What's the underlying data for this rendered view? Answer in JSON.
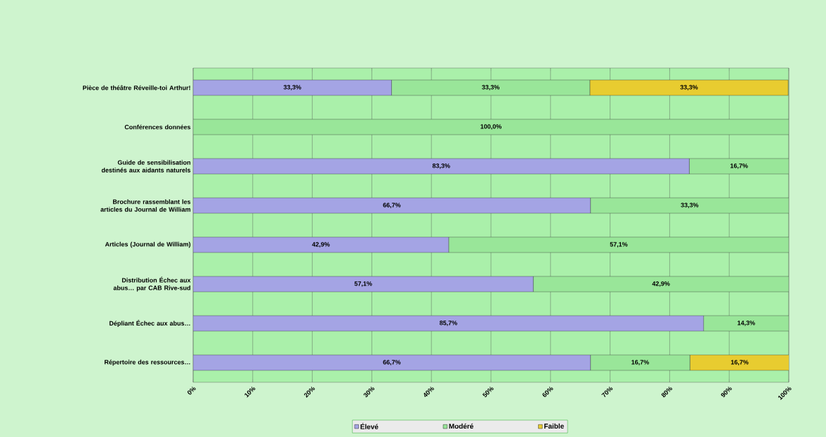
{
  "chart_data": {
    "type": "bar",
    "orientation": "horizontal",
    "stacked": true,
    "categories": [
      "Pièce de théâtre Réveille-toi Arthur!",
      "Conférences données",
      "Guide de sensibilisation destinés aux aidants naturels",
      "Brochure rassemblant les articles du Journal de William",
      "Articles (Journal de William)",
      "Distribution Échec aux abus… par CAB Rive-sud",
      "Dépliant Échec aux abus…",
      "Répertoire des ressources…"
    ],
    "series": [
      {
        "name": "Élevé",
        "color": "#a4a4e4",
        "values": [
          33.3,
          null,
          83.3,
          66.7,
          42.9,
          57.1,
          85.7,
          66.7
        ],
        "value_labels": [
          "33,3%",
          null,
          "83,3%",
          "66,7%",
          "42,9%",
          "57,1%",
          "85,7%",
          "66,7%"
        ]
      },
      {
        "name": "Modéré",
        "color": "#99e699",
        "values": [
          33.3,
          100,
          16.7,
          33.3,
          57.1,
          42.9,
          14.3,
          16.7
        ],
        "value_labels": [
          "33,3%",
          "100,0%",
          "16,7%",
          "33,3%",
          "57,1%",
          "42,9%",
          "14,3%",
          "16,7%"
        ]
      },
      {
        "name": "Faible",
        "color": "#e8cc30",
        "values": [
          33.3,
          null,
          null,
          null,
          null,
          null,
          null,
          16.7
        ],
        "value_labels": [
          "33,3%",
          null,
          null,
          null,
          null,
          null,
          null,
          "16,7%"
        ]
      }
    ],
    "xlim": [
      0,
      100
    ],
    "xticks": [
      {
        "value": 0,
        "label": "0%"
      },
      {
        "value": 10,
        "label": "10%"
      },
      {
        "value": 20,
        "label": "20%"
      },
      {
        "value": 30,
        "label": "30%"
      },
      {
        "value": 40,
        "label": "40%"
      },
      {
        "value": 50,
        "label": "50%"
      },
      {
        "value": 60,
        "label": "60%"
      },
      {
        "value": 70,
        "label": "70%"
      },
      {
        "value": 80,
        "label": "80%"
      },
      {
        "value": 90,
        "label": "90%"
      },
      {
        "value": 100,
        "label": "100%"
      }
    ],
    "grid": "x",
    "legend": "bottom"
  }
}
